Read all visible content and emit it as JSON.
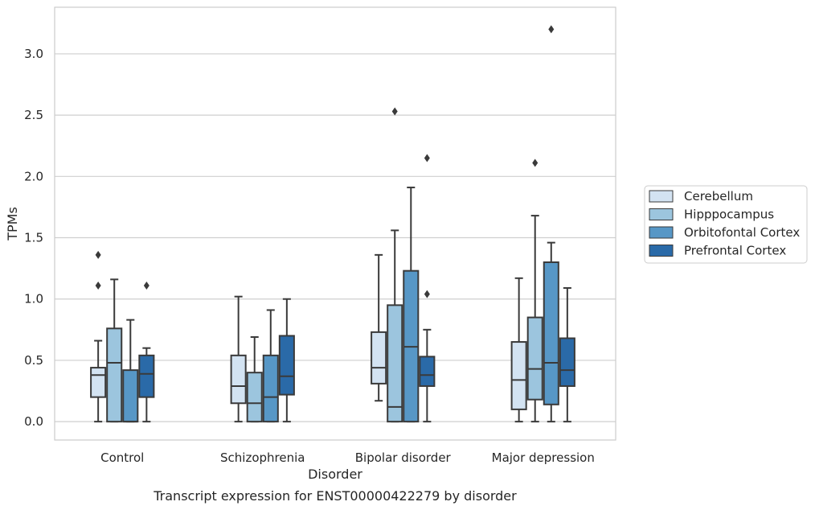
{
  "chart_data": {
    "type": "box",
    "title": "",
    "caption": "Transcript expression for ENST00000422279 by disorder",
    "xlabel": "Disorder",
    "ylabel": "TPMs",
    "ylim": [
      -0.15,
      3.38
    ],
    "yticks": [
      0.0,
      0.5,
      1.0,
      1.5,
      2.0,
      2.5,
      3.0
    ],
    "ytick_labels": [
      "0.0",
      "0.5",
      "1.0",
      "1.5",
      "2.0",
      "2.5",
      "3.0"
    ],
    "grid": "horizontal",
    "legend_position": "right",
    "categories": [
      "Control",
      "Schizophrenia",
      "Bipolar disorder",
      "Major depression"
    ],
    "series": [
      {
        "name": "Cerebellum",
        "color": "#d3e3f2",
        "boxes": [
          {
            "whisker_low": 0.0,
            "q1": 0.2,
            "median": 0.38,
            "q3": 0.44,
            "whisker_high": 0.66,
            "outliers": [
              1.11,
              1.36
            ]
          },
          {
            "whisker_low": 0.0,
            "q1": 0.15,
            "median": 0.29,
            "q3": 0.54,
            "whisker_high": 1.02,
            "outliers": []
          },
          {
            "whisker_low": 0.17,
            "q1": 0.31,
            "median": 0.44,
            "q3": 0.73,
            "whisker_high": 1.36,
            "outliers": []
          },
          {
            "whisker_low": 0.0,
            "q1": 0.1,
            "median": 0.34,
            "q3": 0.65,
            "whisker_high": 1.17,
            "outliers": []
          }
        ]
      },
      {
        "name": "Hipppocampus",
        "color": "#9cc5de",
        "boxes": [
          {
            "whisker_low": 0.0,
            "q1": 0.0,
            "median": 0.48,
            "q3": 0.76,
            "whisker_high": 1.16,
            "outliers": []
          },
          {
            "whisker_low": 0.0,
            "q1": 0.0,
            "median": 0.15,
            "q3": 0.4,
            "whisker_high": 0.69,
            "outliers": []
          },
          {
            "whisker_low": 0.0,
            "q1": 0.0,
            "median": 0.12,
            "q3": 0.95,
            "whisker_high": 1.56,
            "outliers": [
              2.53
            ]
          },
          {
            "whisker_low": 0.0,
            "q1": 0.18,
            "median": 0.43,
            "q3": 0.85,
            "whisker_high": 1.68,
            "outliers": [
              2.11
            ]
          }
        ]
      },
      {
        "name": "Orbitofontal Cortex",
        "color": "#5797c6",
        "boxes": [
          {
            "whisker_low": 0.0,
            "q1": 0.0,
            "median": 0.0,
            "q3": 0.42,
            "whisker_high": 0.83,
            "outliers": []
          },
          {
            "whisker_low": 0.0,
            "q1": 0.0,
            "median": 0.2,
            "q3": 0.54,
            "whisker_high": 0.91,
            "outliers": []
          },
          {
            "whisker_low": 0.0,
            "q1": 0.0,
            "median": 0.61,
            "q3": 1.23,
            "whisker_high": 1.91,
            "outliers": []
          },
          {
            "whisker_low": 0.0,
            "q1": 0.14,
            "median": 0.48,
            "q3": 1.3,
            "whisker_high": 1.46,
            "outliers": [
              3.2
            ]
          }
        ]
      },
      {
        "name": "Prefrontal Cortex",
        "color": "#2a6aa8",
        "boxes": [
          {
            "whisker_low": 0.0,
            "q1": 0.2,
            "median": 0.39,
            "q3": 0.54,
            "whisker_high": 0.6,
            "outliers": [
              1.11
            ]
          },
          {
            "whisker_low": 0.0,
            "q1": 0.22,
            "median": 0.37,
            "q3": 0.7,
            "whisker_high": 1.0,
            "outliers": []
          },
          {
            "whisker_low": 0.0,
            "q1": 0.29,
            "median": 0.38,
            "q3": 0.53,
            "whisker_high": 0.75,
            "outliers": [
              1.04,
              2.15
            ]
          },
          {
            "whisker_low": 0.0,
            "q1": 0.29,
            "median": 0.42,
            "q3": 0.68,
            "whisker_high": 1.09,
            "outliers": []
          }
        ]
      }
    ]
  },
  "style": {
    "grid_color": "#cfcfcf",
    "frame_color": "#cccccc",
    "line_color": "#3a3a3a",
    "legend_border": "#cccccc"
  }
}
